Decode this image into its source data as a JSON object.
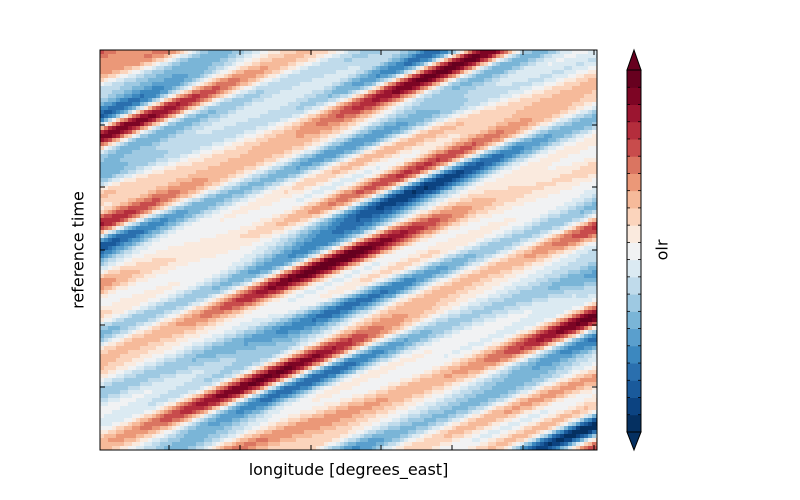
{
  "chart_data": {
    "type": "heatmap",
    "title": "",
    "xlabel": "longitude [degrees_east]",
    "ylabel": "reference time",
    "colorbar_label": "olr",
    "colormap": "RdBu_r",
    "colorbar_extend": "both",
    "colorbar_levels": 20,
    "x_tick_labels": [],
    "y_tick_labels": [],
    "pattern": "diagonal bands of alternating positive (red) and negative (blue) anomalies sloping downward to the right",
    "colors": [
      "#053061",
      "#0c4381",
      "#1a5a9b",
      "#2a6fae",
      "#3c88bf",
      "#5a9fcd",
      "#7ab5d7",
      "#9ec9e2",
      "#c0dbeb",
      "#dbeaf2",
      "#f1f2f3",
      "#faeade",
      "#fbd4bc",
      "#f6ba9a",
      "#eb9878",
      "#da7561",
      "#c84c4c",
      "#b42d3c",
      "#9b1530",
      "#7d0524",
      "#67001f"
    ],
    "underflow_color": "#053061",
    "overflow_color": "#67001f"
  }
}
